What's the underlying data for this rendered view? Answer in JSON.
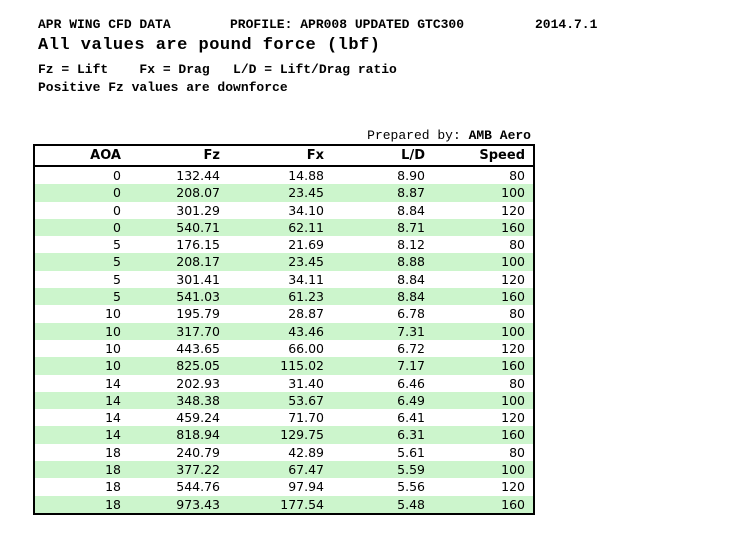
{
  "header": {
    "title": "APR WING CFD DATA",
    "profile": "PROFILE: APR008 UPDATED GTC300",
    "date": "2014.7.1",
    "subtitle": "All values are pound force (lbf)",
    "legend": "Fz = Lift    Fx = Drag   L/D = Lift/Drag ratio",
    "note": "Positive Fz values are downforce"
  },
  "prepared_by": {
    "label": "Prepared by: ",
    "value": "AMB Aero"
  },
  "colors": {
    "row_stripe_green": "#ccf5cc",
    "border": "#000000",
    "background": "#ffffff",
    "text": "#000000"
  },
  "chart_data": {
    "type": "table",
    "title": "APR WING CFD DATA",
    "columns": [
      "AOA",
      "Fz",
      "Fx",
      "L/D",
      "Speed"
    ],
    "rows": [
      [
        "0",
        "132.44",
        "14.88",
        "8.90",
        "80"
      ],
      [
        "0",
        "208.07",
        "23.45",
        "8.87",
        "100"
      ],
      [
        "0",
        "301.29",
        "34.10",
        "8.84",
        "120"
      ],
      [
        "0",
        "540.71",
        "62.11",
        "8.71",
        "160"
      ],
      [
        "5",
        "176.15",
        "21.69",
        "8.12",
        "80"
      ],
      [
        "5",
        "208.17",
        "23.45",
        "8.88",
        "100"
      ],
      [
        "5",
        "301.41",
        "34.11",
        "8.84",
        "120"
      ],
      [
        "5",
        "541.03",
        "61.23",
        "8.84",
        "160"
      ],
      [
        "10",
        "195.79",
        "28.87",
        "6.78",
        "80"
      ],
      [
        "10",
        "317.70",
        "43.46",
        "7.31",
        "100"
      ],
      [
        "10",
        "443.65",
        "66.00",
        "6.72",
        "120"
      ],
      [
        "10",
        "825.05",
        "115.02",
        "7.17",
        "160"
      ],
      [
        "14",
        "202.93",
        "31.40",
        "6.46",
        "80"
      ],
      [
        "14",
        "348.38",
        "53.67",
        "6.49",
        "100"
      ],
      [
        "14",
        "459.24",
        "71.70",
        "6.41",
        "120"
      ],
      [
        "14",
        "818.94",
        "129.75",
        "6.31",
        "160"
      ],
      [
        "18",
        "240.79",
        "42.89",
        "5.61",
        "80"
      ],
      [
        "18",
        "377.22",
        "67.47",
        "5.59",
        "100"
      ],
      [
        "18",
        "544.76",
        "97.94",
        "5.56",
        "120"
      ],
      [
        "18",
        "973.43",
        "177.54",
        "5.48",
        "160"
      ]
    ]
  }
}
